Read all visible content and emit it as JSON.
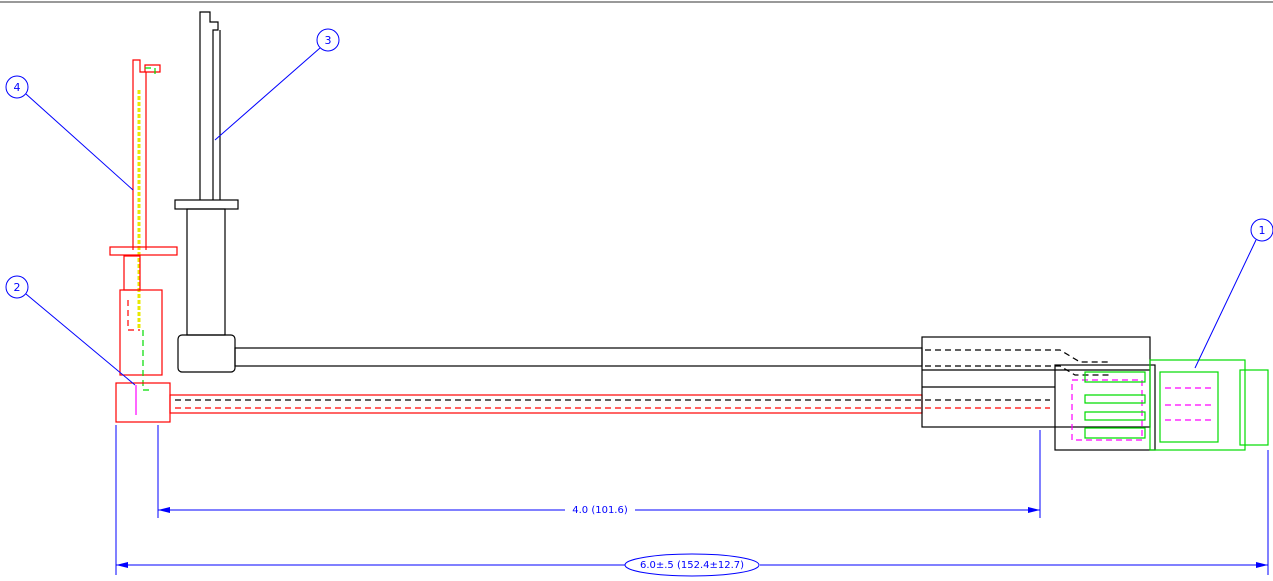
{
  "balloons": [
    "1",
    "2",
    "3",
    "4"
  ],
  "dimensions": {
    "inner": "4.0 (101.6)",
    "overall": "6.0±.5 (152.4±12.7)"
  }
}
